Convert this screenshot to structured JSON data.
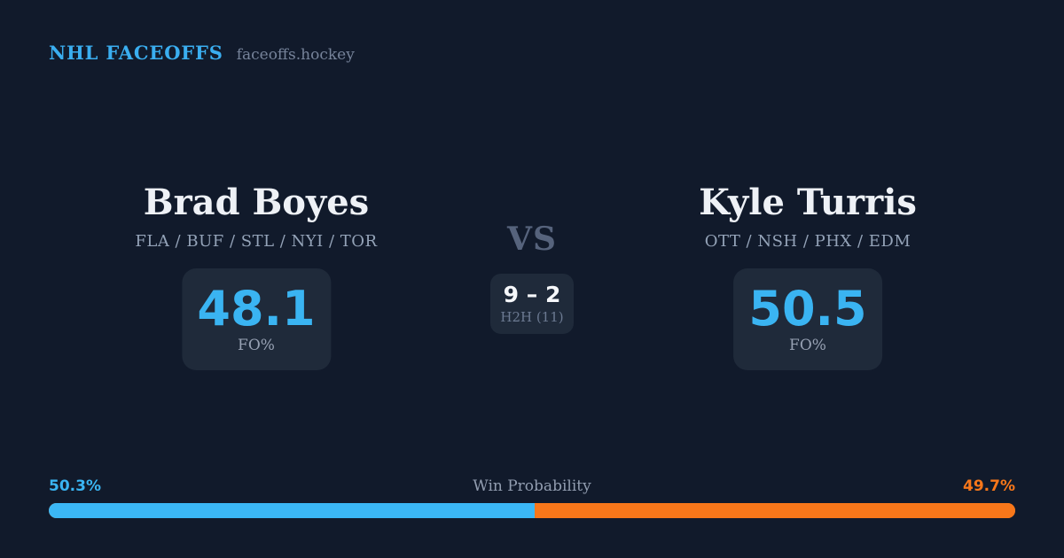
{
  "header": {
    "brand": "NHL FACEOFFS",
    "site": "faceoffs.hockey"
  },
  "matchup": {
    "vs_label": "VS",
    "h2h": {
      "score": "9 – 2",
      "label": "H2H (11)"
    },
    "players": [
      {
        "name": "Brad Boyes",
        "teams": "FLA / BUF / STL / NYI / TOR",
        "fo_pct": "48.1",
        "fo_label": "FO%"
      },
      {
        "name": "Kyle Turris",
        "teams": "OTT / NSH / PHX / EDM",
        "fo_pct": "50.5",
        "fo_label": "FO%"
      }
    ]
  },
  "win_probability": {
    "title": "Win Probability",
    "left_pct": "50.3%",
    "right_pct": "49.7%",
    "left_value": 50.3,
    "right_value": 49.7
  },
  "colors": {
    "background": "#111A2B",
    "card": "#1F2A3A",
    "accent_blue": "#3AB4F2",
    "accent_orange": "#F8771A",
    "text_primary": "#EEF1F6",
    "text_muted": "#94A3B8",
    "vs_gray": "#56637C"
  }
}
